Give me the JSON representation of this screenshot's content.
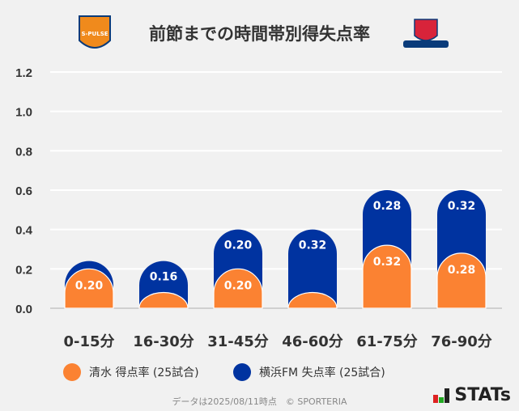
{
  "chart_data": {
    "type": "bar",
    "stacked": true,
    "title": "前節までの時間帯別得失点率",
    "categories": [
      "0-15分",
      "16-30分",
      "31-45分",
      "46-60分",
      "61-75分",
      "76-90分"
    ],
    "series": [
      {
        "name": "清水 得点率 (25試合)",
        "color": "#fb8232",
        "values": [
          0.2,
          0.08,
          0.2,
          0.08,
          0.32,
          0.28
        ],
        "labels": [
          "0.20",
          "",
          "0.20",
          "",
          "0.32",
          "0.28"
        ]
      },
      {
        "name": "横浜FM 失点率 (25試合)",
        "color": "#0033a0",
        "values": [
          0.04,
          0.16,
          0.2,
          0.32,
          0.28,
          0.32
        ],
        "labels": [
          "",
          "0.16",
          "0.20",
          "0.32",
          "0.28",
          "0.32"
        ]
      }
    ],
    "ylim": [
      0,
      1.2
    ],
    "yticks": [
      "0.0",
      "0.2",
      "0.4",
      "0.6",
      "0.8",
      "1.0",
      "1.2"
    ],
    "grid": true,
    "legend_position": "bottom"
  },
  "logos": {
    "left": "S-PULSE",
    "right": "Yokohama F·Marinos"
  },
  "footer": "データは2025/08/11時点　© SPORTERIA",
  "brand": "STATs"
}
